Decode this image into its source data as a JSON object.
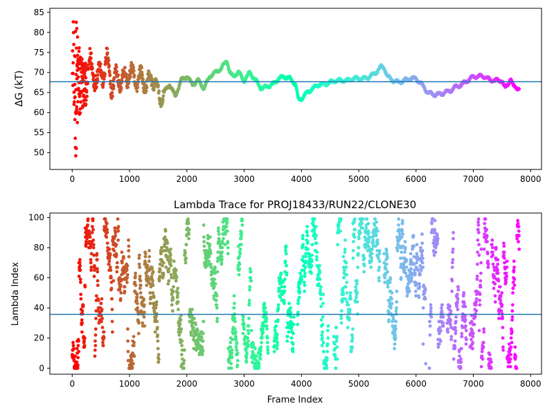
{
  "chart_data": [
    {
      "type": "scatter",
      "title": "",
      "xlabel": "",
      "ylabel": "ΔG (kT)",
      "xlim": [
        -390,
        8190
      ],
      "ylim": [
        45.8,
        86.0
      ],
      "xticks": [
        0,
        1000,
        2000,
        3000,
        4000,
        5000,
        6000,
        7000,
        8000
      ],
      "yticks": [
        50,
        55,
        60,
        65,
        70,
        75,
        80,
        85
      ],
      "hline": {
        "y": 67.7,
        "color": "#1f77b4"
      },
      "colormap": "rainbow (red at frame 0 to violet at frame 7800)",
      "grid": false,
      "trace_points": [
        [
          0,
          84
        ],
        [
          10,
          80
        ],
        [
          20,
          76
        ],
        [
          30,
          68
        ],
        [
          40,
          60
        ],
        [
          50,
          58
        ],
        [
          60,
          52
        ],
        [
          80,
          64
        ],
        [
          100,
          72
        ],
        [
          120,
          66
        ],
        [
          150,
          60
        ],
        [
          180,
          57
        ],
        [
          200,
          62
        ],
        [
          230,
          66
        ],
        [
          260,
          70
        ],
        [
          300,
          72
        ],
        [
          350,
          69
        ],
        [
          400,
          71
        ],
        [
          450,
          68
        ],
        [
          500,
          70
        ],
        [
          600,
          72
        ],
        [
          700,
          67
        ],
        [
          800,
          69
        ],
        [
          900,
          68
        ],
        [
          1000,
          70
        ],
        [
          1100,
          68
        ],
        [
          1200,
          69
        ],
        [
          1300,
          67
        ],
        [
          1400,
          69
        ],
        [
          1500,
          65
        ],
        [
          1550,
          63
        ],
        [
          1600,
          65
        ],
        [
          1700,
          67
        ],
        [
          1800,
          64
        ],
        [
          1900,
          68
        ],
        [
          2000,
          69
        ],
        [
          2100,
          67
        ],
        [
          2200,
          68
        ],
        [
          2300,
          66
        ],
        [
          2400,
          69
        ],
        [
          2500,
          70
        ],
        [
          2600,
          71
        ],
        [
          2700,
          73
        ],
        [
          2750,
          70
        ],
        [
          2800,
          69
        ],
        [
          2900,
          70
        ],
        [
          3000,
          68
        ],
        [
          3100,
          70
        ],
        [
          3200,
          68
        ],
        [
          3300,
          66
        ],
        [
          3400,
          66.5
        ],
        [
          3500,
          67
        ],
        [
          3600,
          68.5
        ],
        [
          3700,
          69
        ],
        [
          3800,
          68.5
        ],
        [
          3900,
          67
        ],
        [
          3950,
          63
        ],
        [
          4000,
          63.5
        ],
        [
          4100,
          65
        ],
        [
          4200,
          66
        ],
        [
          4300,
          67
        ],
        [
          4400,
          67
        ],
        [
          4500,
          67.5
        ],
        [
          4600,
          68
        ],
        [
          4700,
          68
        ],
        [
          4800,
          68
        ],
        [
          4900,
          68.5
        ],
        [
          5000,
          68.5
        ],
        [
          5100,
          68.5
        ],
        [
          5200,
          69
        ],
        [
          5300,
          70
        ],
        [
          5400,
          71.5
        ],
        [
          5450,
          71
        ],
        [
          5500,
          69
        ],
        [
          5600,
          68
        ],
        [
          5700,
          67.5
        ],
        [
          5800,
          68
        ],
        [
          5900,
          68.5
        ],
        [
          6000,
          68.5
        ],
        [
          6100,
          67
        ],
        [
          6200,
          65
        ],
        [
          6300,
          64.5
        ],
        [
          6400,
          64.5
        ],
        [
          6500,
          65
        ],
        [
          6600,
          65.5
        ],
        [
          6700,
          66.5
        ],
        [
          6800,
          67
        ],
        [
          6900,
          68
        ],
        [
          7000,
          69
        ],
        [
          7100,
          69
        ],
        [
          7200,
          69
        ],
        [
          7300,
          68
        ],
        [
          7400,
          68
        ],
        [
          7500,
          68
        ],
        [
          7550,
          66
        ],
        [
          7600,
          67
        ],
        [
          7650,
          68.5
        ],
        [
          7700,
          66.5
        ],
        [
          7800,
          66
        ]
      ]
    },
    {
      "type": "scatter",
      "title": "Lambda Trace for PROJ18433/RUN22/CLONE30",
      "xlabel": "Frame Index",
      "ylabel": "Lambda Index",
      "xlim": [
        -390,
        8190
      ],
      "ylim": [
        -4,
        103
      ],
      "xticks": [
        0,
        1000,
        2000,
        3000,
        4000,
        5000,
        6000,
        7000,
        8000
      ],
      "yticks": [
        0,
        20,
        40,
        60,
        80,
        100
      ],
      "hline": {
        "y": 35.7,
        "color": "#1f77b4"
      },
      "colormap": "rainbow (red at frame 0 to violet at frame 7800)",
      "grid": false,
      "gap_ranges": [
        [
          3420,
          3520
        ],
        [
          3870,
          3930
        ],
        [
          4470,
          4560
        ],
        [
          5370,
          5440
        ],
        [
          6170,
          6230
        ],
        [
          6480,
          6540
        ],
        [
          6880,
          6940
        ]
      ],
      "n_points_frames": 7800
    }
  ]
}
